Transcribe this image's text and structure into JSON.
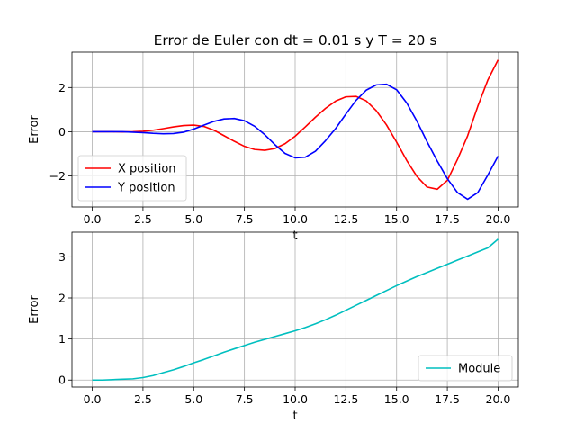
{
  "chart_data": [
    {
      "type": "line",
      "title": "Error de Euler con dt = 0.01 s y T = 20 s",
      "xlabel": "t",
      "ylabel": "Error",
      "xlim": [
        -1.0,
        21.0
      ],
      "ylim": [
        -3.4,
        3.6
      ],
      "xticks": [
        0,
        2.5,
        5,
        7.5,
        10,
        12.5,
        15,
        17.5,
        20
      ],
      "xtick_labels": [
        "0.0",
        "2.5",
        "5.0",
        "7.5",
        "10.0",
        "12.5",
        "15.0",
        "17.5",
        "20.0"
      ],
      "yticks": [
        -2,
        0,
        2
      ],
      "ytick_labels": [
        "−2",
        "0",
        "2"
      ],
      "grid": true,
      "legend": "lower-left",
      "x": [
        0,
        0.5,
        1,
        1.5,
        2,
        2.5,
        3,
        3.5,
        4,
        4.5,
        5,
        5.5,
        6,
        6.5,
        7,
        7.5,
        8,
        8.5,
        9,
        9.5,
        10,
        10.5,
        11,
        11.5,
        12,
        12.5,
        13,
        13.5,
        14,
        14.5,
        15,
        15.5,
        16,
        16.5,
        17,
        17.5,
        18,
        18.5,
        19,
        19.5,
        20
      ],
      "series": [
        {
          "name": "X position",
          "color": "#ff0000",
          "values": [
            0.0,
            0.0,
            0.0,
            -0.01,
            0.0,
            0.02,
            0.07,
            0.14,
            0.22,
            0.28,
            0.3,
            0.24,
            0.07,
            -0.18,
            -0.43,
            -0.66,
            -0.8,
            -0.84,
            -0.76,
            -0.54,
            -0.2,
            0.22,
            0.66,
            1.06,
            1.39,
            1.58,
            1.6,
            1.4,
            0.95,
            0.31,
            -0.47,
            -1.3,
            -2.02,
            -2.5,
            -2.6,
            -2.2,
            -1.25,
            -0.18,
            1.15,
            2.35,
            3.25
          ]
        },
        {
          "name": "Y position",
          "color": "#0000ff",
          "values": [
            0.0,
            0.0,
            0.0,
            0.0,
            -0.02,
            -0.04,
            -0.07,
            -0.09,
            -0.08,
            -0.02,
            0.12,
            0.3,
            0.47,
            0.58,
            0.6,
            0.5,
            0.25,
            -0.13,
            -0.58,
            -0.98,
            -1.18,
            -1.15,
            -0.88,
            -0.4,
            0.15,
            0.8,
            1.42,
            1.88,
            2.12,
            2.15,
            1.9,
            1.3,
            0.48,
            -0.45,
            -1.32,
            -2.12,
            -2.75,
            -3.05,
            -2.75,
            -1.95,
            -1.1
          ]
        }
      ]
    },
    {
      "type": "line",
      "title": "",
      "xlabel": "t",
      "ylabel": "Error",
      "xlim": [
        -1.0,
        21.0
      ],
      "ylim": [
        -0.17,
        3.6
      ],
      "xticks": [
        0,
        2.5,
        5,
        7.5,
        10,
        12.5,
        15,
        17.5,
        20
      ],
      "xtick_labels": [
        "0.0",
        "2.5",
        "5.0",
        "7.5",
        "10.0",
        "12.5",
        "15.0",
        "17.5",
        "20.0"
      ],
      "yticks": [
        0,
        1,
        2,
        3
      ],
      "ytick_labels": [
        "0",
        "1",
        "2",
        "3"
      ],
      "grid": true,
      "legend": "lower-right",
      "x": [
        0,
        0.5,
        1,
        1.5,
        2,
        2.5,
        3,
        3.5,
        4,
        4.5,
        5,
        5.5,
        6,
        6.5,
        7,
        7.5,
        8,
        8.5,
        9,
        9.5,
        10,
        10.5,
        11,
        11.5,
        12,
        12.5,
        13,
        13.5,
        14,
        14.5,
        15,
        15.5,
        16,
        16.5,
        17,
        17.5,
        18,
        18.5,
        19,
        19.5,
        20
      ],
      "series": [
        {
          "name": "Module",
          "color": "#00bfbf",
          "values": [
            0.0,
            0.0,
            0.01,
            0.02,
            0.03,
            0.06,
            0.11,
            0.18,
            0.25,
            0.33,
            0.42,
            0.5,
            0.59,
            0.68,
            0.76,
            0.84,
            0.92,
            0.99,
            1.06,
            1.13,
            1.2,
            1.28,
            1.37,
            1.47,
            1.58,
            1.7,
            1.82,
            1.94,
            2.06,
            2.18,
            2.3,
            2.41,
            2.52,
            2.62,
            2.72,
            2.82,
            2.92,
            3.02,
            3.12,
            3.22,
            3.43
          ]
        }
      ]
    }
  ]
}
